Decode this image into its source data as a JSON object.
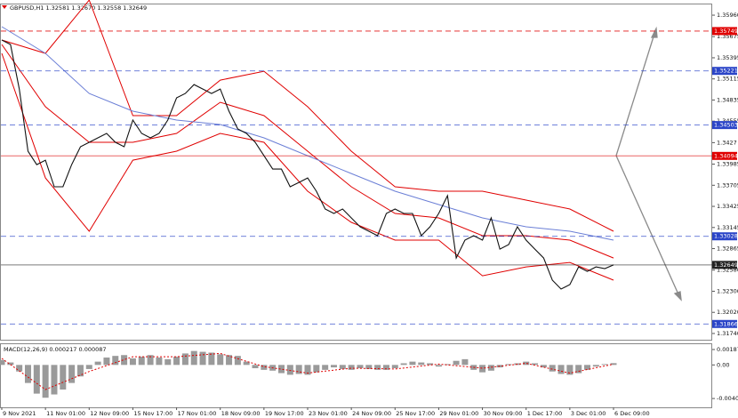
{
  "chart_data": {
    "type": "line",
    "title": "GBPUSD,H1  1.32581 1.32670 1.32558 1.32649",
    "color": "#111111",
    "categories": [
      "9 Nov 2021",
      null,
      null,
      null,
      null,
      "11 Nov 01:00",
      null,
      null,
      null,
      null,
      "12 Nov 09:00",
      null,
      null,
      null,
      null,
      "15 Nov 17:00",
      null,
      null,
      null,
      null,
      "17 Nov 01:00",
      null,
      null,
      null,
      null,
      "18 Nov 09:00",
      null,
      null,
      null,
      null,
      "19 Nov 17:00",
      null,
      null,
      null,
      null,
      "23 Nov 01:00",
      null,
      null,
      null,
      null,
      "24 Nov 09:00",
      null,
      null,
      null,
      null,
      "25 Nov 17:00",
      null,
      null,
      null,
      null,
      "29 Nov 01:00",
      null,
      null,
      null,
      null,
      "30 Nov 09:00",
      null,
      null,
      null,
      null,
      "1 Dec 17:00",
      null,
      null,
      null,
      null,
      "3 Dec 01:00",
      null,
      null,
      null,
      null,
      "6 Dec 09:00"
    ],
    "values": [
      1.3563,
      1.35571,
      1.34981,
      1.34156,
      1.33979,
      1.34038,
      1.33685,
      1.33685,
      1.33979,
      1.34215,
      1.34274,
      1.34333,
      1.34392,
      1.34274,
      1.34215,
      1.34569,
      1.34392,
      1.34333,
      1.34392,
      1.34569,
      1.34864,
      1.34922,
      1.3504,
      1.34981,
      1.34922,
      1.34981,
      1.34687,
      1.34451,
      1.34392,
      1.34274,
      1.34097,
      1.3392,
      1.3392,
      1.33685,
      1.33743,
      1.33802,
      1.33626,
      1.3339,
      1.33331,
      1.3339,
      1.33272,
      1.33154,
      1.33095,
      1.33036,
      1.33331,
      1.3339,
      1.33331,
      1.33331,
      1.33036,
      1.33154,
      1.33331,
      1.33567,
      1.32741,
      1.32977,
      1.33036,
      1.32977,
      1.33272,
      1.32859,
      1.32918,
      1.33154,
      1.32977,
      1.32859,
      1.32741,
      1.32447,
      1.32329,
      1.32388,
      1.32623,
      1.32564,
      1.32623,
      1.326,
      1.32649
    ],
    "overlays": [
      {
        "color": "#e00000",
        "values": [
          1.3563,
          1.35453,
          1.3616,
          1.34628,
          1.34628,
          1.35099,
          1.35217,
          1.34746,
          1.34156,
          1.33685,
          1.33626,
          1.33626,
          1.33508,
          1.3339,
          1.33095
        ]
      },
      {
        "color": "#e00000",
        "values": [
          1.35571,
          1.34746,
          1.34274,
          1.34274,
          1.34392,
          1.34805,
          1.34628,
          1.34156,
          1.33685,
          1.33331,
          1.33272,
          1.33036,
          1.33036,
          1.32977,
          1.32741
        ]
      },
      {
        "color": "#e00000",
        "values": [
          1.35453,
          1.33802,
          1.33095,
          1.34038,
          1.34156,
          1.34392,
          1.34274,
          1.33626,
          1.33213,
          1.32977,
          1.32977,
          1.32505,
          1.32623,
          1.32682,
          1.32447
        ]
      },
      {
        "color": "#6b7fd6",
        "values": [
          1.35807,
          1.35453,
          1.34922,
          1.34687,
          1.34569,
          1.3451,
          1.34333,
          1.34097,
          1.33861,
          1.33626,
          1.33449,
          1.33272,
          1.33154,
          1.33095,
          1.32977
        ]
      }
    ],
    "ylim": [
      1.31657,
      1.36102
    ],
    "yticks": [
      {
        "value": 1.3596,
        "label": "1.35960"
      },
      1.35675,
      1.35395,
      1.35115,
      1.34835,
      1.34555,
      1.3427,
      1.33985,
      1.33705,
      1.33425,
      1.33145,
      1.32865,
      {
        "value": 1.3258,
        "label": "1.32580"
      },
      {
        "value": 1.323,
        "label": "1.32300"
      },
      {
        "value": 1.3202,
        "label": "1.32020"
      },
      {
        "value": 1.3174,
        "label": "1.31740"
      }
    ],
    "levels": [
      {
        "value": 1.35749,
        "color": "#e00000",
        "dashed": true
      },
      {
        "value": 1.35221,
        "color": "#2b45c8",
        "dashed": true
      },
      {
        "value": 1.34503,
        "color": "#2b45c8",
        "dashed": true
      },
      {
        "value": 1.34094,
        "color": "#e00000",
        "dashed": false
      },
      {
        "value": 1.33028,
        "color": "#2b45c8",
        "dashed": true
      },
      {
        "value": 1.32649,
        "color": "#222222",
        "dashed": false
      },
      {
        "value": 1.31866,
        "color": "#2b45c8",
        "dashed": true
      }
    ],
    "macd": {
      "title": "MACD(12,26,9) 0.000217 0.000087",
      "ylim": [
        -0.00517,
        0.00253
      ],
      "yticks": [
        0.001878,
        {
          "value": 0,
          "label": "0.00"
        },
        -0.004095
      ],
      "histogram_color": "#9a9a9a",
      "signal_color": "#e00000",
      "histogram": [
        0.0006,
        0.0003,
        -0.0008,
        -0.0022,
        -0.0035,
        -0.004,
        -0.0036,
        -0.003,
        -0.0022,
        -0.0014,
        -0.0005,
        0.0004,
        0.0009,
        0.0011,
        0.0012,
        0.0008,
        0.001,
        0.0012,
        0.0009,
        0.0007,
        0.001,
        0.0014,
        0.0017,
        0.0016,
        0.0015,
        0.0013,
        0.0012,
        0.0011,
        0.0004,
        -0.0004,
        -0.0006,
        -0.0007,
        -0.001,
        -0.0012,
        -0.0011,
        -0.0012,
        -0.0009,
        -0.0006,
        -0.0003,
        -0.0005,
        -0.0006,
        -0.0004,
        -0.0005,
        -0.0006,
        -0.0006,
        -0.0004,
        0.0002,
        0.0004,
        0.0003,
        0.0002,
        -0.0002,
        0.0001,
        0.0005,
        0.0007,
        -0.0006,
        -0.0009,
        -0.0007,
        -0.0003,
        0.0001,
        0.0002,
        0.0004,
        0.0002,
        -0.0003,
        -0.0008,
        -0.0011,
        -0.0012,
        -0.001,
        -0.0006,
        -0.0002,
        0.0001,
        0.000217
      ],
      "signal": [
        0.0008,
        -0.003,
        -0.0008,
        0.001,
        0.001,
        0.0014,
        -0.0002,
        -0.001,
        -0.0004,
        -0.0005,
        0.0001,
        -0.0004,
        0.0002,
        -0.001,
        8.7e-05
      ]
    }
  }
}
